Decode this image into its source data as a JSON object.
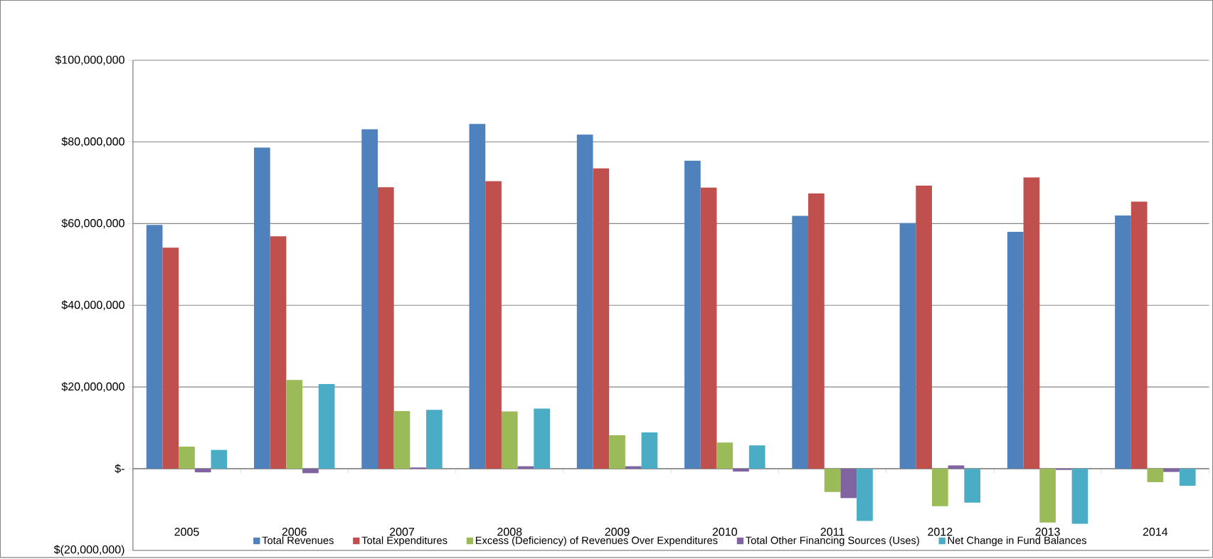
{
  "chart_data": {
    "type": "bar",
    "categories": [
      "2005",
      "2006",
      "2007",
      "2008",
      "2009",
      "2010",
      "2011",
      "2012",
      "2013",
      "2014"
    ],
    "series": [
      {
        "name": "Total Revenues",
        "color": "#4f81bd",
        "values": [
          59700000,
          78600000,
          83100000,
          84400000,
          81800000,
          75400000,
          61900000,
          60100000,
          58000000,
          62000000
        ]
      },
      {
        "name": "Total Expenditures",
        "color": "#c0504d",
        "values": [
          54100000,
          56900000,
          68900000,
          70400000,
          73500000,
          68800000,
          67400000,
          69300000,
          71300000,
          65400000
        ]
      },
      {
        "name": "Excess (Deficiency) of Revenues Over Expenditures",
        "color": "#9bbb59",
        "values": [
          5400000,
          21700000,
          14100000,
          14000000,
          8200000,
          6400000,
          -5700000,
          -9200000,
          -13200000,
          -3300000
        ]
      },
      {
        "name": "Total Other Financing Sources (Uses)",
        "color": "#8064a2",
        "values": [
          -900000,
          -1100000,
          300000,
          600000,
          600000,
          -700000,
          -7200000,
          800000,
          -300000,
          -800000
        ]
      },
      {
        "name": "Net Change in Fund Balances",
        "color": "#4bacc6",
        "values": [
          4600000,
          20700000,
          14400000,
          14700000,
          8900000,
          5700000,
          -12800000,
          -8300000,
          -13500000,
          -4200000
        ]
      }
    ],
    "ylim": [
      -20000000,
      100000000
    ],
    "yticks": [
      {
        "value": -20000000,
        "label": "$(20,000,000)"
      },
      {
        "value": 0,
        "label": "$-"
      },
      {
        "value": 20000000,
        "label": "$20,000,000"
      },
      {
        "value": 40000000,
        "label": "$40,000,000"
      },
      {
        "value": 60000000,
        "label": "$60,000,000"
      },
      {
        "value": 80000000,
        "label": "$80,000,000"
      },
      {
        "value": 100000000,
        "label": "$100,000,000"
      }
    ],
    "grid": "y",
    "legend": "bottom"
  }
}
